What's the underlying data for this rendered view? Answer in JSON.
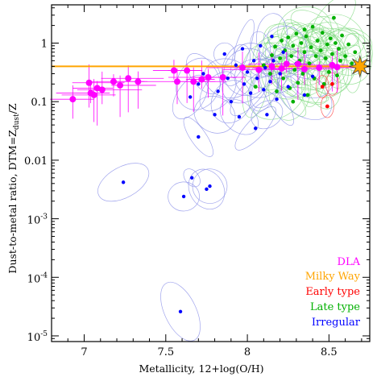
{
  "chart_data": {
    "type": "scatter",
    "xlabel": "Metallicity, 12+log(O/H)",
    "ylabel_main": "Dust-to-metal ratio, DTM=Z",
    "ylabel_sub": "dust",
    "ylabel_tail": "/Z",
    "xlim": [
      6.8,
      8.75
    ],
    "ylim": [
      8e-06,
      4.5
    ],
    "yscale": "log",
    "x_ticks": [
      {
        "v": 7,
        "label": "7"
      },
      {
        "v": 7.5,
        "label": "7.5"
      },
      {
        "v": 8,
        "label": "8"
      },
      {
        "v": 8.5,
        "label": "8.5"
      }
    ],
    "y_ticks": [
      {
        "v": 1,
        "label": "1"
      },
      {
        "v": 0.1,
        "label": "0.1"
      },
      {
        "v": 0.01,
        "label": "0.01"
      },
      {
        "v": 0.001,
        "base": "10",
        "exp": "-3"
      },
      {
        "v": 0.0001,
        "base": "10",
        "exp": "-4"
      },
      {
        "v": 1e-05,
        "base": "10",
        "exp": "-5"
      }
    ],
    "legend": [
      {
        "label": "DLA",
        "color": "#ff00ff"
      },
      {
        "label": "Milky Way",
        "color": "#ffa500"
      },
      {
        "label": "Early type",
        "color": "#ff0000"
      },
      {
        "label": "Late type",
        "color": "#00b000"
      },
      {
        "label": "Irregular",
        "color": "#0000ff"
      }
    ],
    "milky_way": {
      "y": 0.4,
      "star_x": 8.69,
      "color": "#ffa500"
    },
    "series": [
      {
        "name": "DLA",
        "color": "#ff00ff",
        "points": [
          {
            "x": 6.93,
            "y": 0.11
          },
          {
            "x": 7.03,
            "y": 0.21
          },
          {
            "x": 7.04,
            "y": 0.14
          },
          {
            "x": 7.06,
            "y": 0.13
          },
          {
            "x": 7.08,
            "y": 0.17
          },
          {
            "x": 7.11,
            "y": 0.16
          },
          {
            "x": 7.18,
            "y": 0.22
          },
          {
            "x": 7.22,
            "y": 0.19
          },
          {
            "x": 7.27,
            "y": 0.25
          },
          {
            "x": 7.33,
            "y": 0.22
          },
          {
            "x": 7.55,
            "y": 0.34
          },
          {
            "x": 7.57,
            "y": 0.22
          },
          {
            "x": 7.63,
            "y": 0.34
          },
          {
            "x": 7.67,
            "y": 0.22
          },
          {
            "x": 7.72,
            "y": 0.24
          },
          {
            "x": 7.76,
            "y": 0.26
          },
          {
            "x": 7.85,
            "y": 0.26
          },
          {
            "x": 7.97,
            "y": 0.38
          },
          {
            "x": 8.07,
            "y": 0.35
          },
          {
            "x": 8.15,
            "y": 0.4
          },
          {
            "x": 8.21,
            "y": 0.37
          },
          {
            "x": 8.24,
            "y": 0.44
          },
          {
            "x": 8.31,
            "y": 0.44
          },
          {
            "x": 8.35,
            "y": 0.36
          },
          {
            "x": 8.44,
            "y": 0.38
          },
          {
            "x": 8.52,
            "y": 0.42
          },
          {
            "x": 8.55,
            "y": 0.39
          }
        ]
      },
      {
        "name": "Early type",
        "color": "#ff0000",
        "points": [
          {
            "x": 8.46,
            "y": 0.18
          },
          {
            "x": 8.49,
            "y": 0.083
          },
          {
            "x": 8.52,
            "y": 0.2
          }
        ]
      },
      {
        "name": "Late type",
        "color": "#00b000",
        "points": [
          {
            "x": 8.05,
            "y": 0.18
          },
          {
            "x": 8.1,
            "y": 0.42
          },
          {
            "x": 8.14,
            "y": 0.3
          },
          {
            "x": 8.15,
            "y": 0.62
          },
          {
            "x": 8.17,
            "y": 0.87
          },
          {
            "x": 8.18,
            "y": 0.15
          },
          {
            "x": 8.2,
            "y": 0.55
          },
          {
            "x": 8.21,
            "y": 1.1
          },
          {
            "x": 8.22,
            "y": 0.25
          },
          {
            "x": 8.23,
            "y": 0.75
          },
          {
            "x": 8.24,
            "y": 0.42
          },
          {
            "x": 8.25,
            "y": 1.25
          },
          {
            "x": 8.26,
            "y": 0.17
          },
          {
            "x": 8.27,
            "y": 0.6
          },
          {
            "x": 8.28,
            "y": 0.9
          },
          {
            "x": 8.29,
            "y": 0.35
          },
          {
            "x": 8.3,
            "y": 1.45
          },
          {
            "x": 8.31,
            "y": 0.21
          },
          {
            "x": 8.32,
            "y": 0.5
          },
          {
            "x": 8.33,
            "y": 1.0
          },
          {
            "x": 8.34,
            "y": 0.3
          },
          {
            "x": 8.35,
            "y": 0.7
          },
          {
            "x": 8.36,
            "y": 1.3
          },
          {
            "x": 8.37,
            "y": 0.13
          },
          {
            "x": 8.38,
            "y": 0.45
          },
          {
            "x": 8.39,
            "y": 0.85
          },
          {
            "x": 8.4,
            "y": 1.9
          },
          {
            "x": 8.41,
            "y": 0.25
          },
          {
            "x": 8.42,
            "y": 0.6
          },
          {
            "x": 8.43,
            "y": 1.1
          },
          {
            "x": 8.44,
            "y": 0.38
          },
          {
            "x": 8.45,
            "y": 0.75
          },
          {
            "x": 8.46,
            "y": 1.5
          },
          {
            "x": 8.47,
            "y": 0.2
          },
          {
            "x": 8.48,
            "y": 0.55
          },
          {
            "x": 8.49,
            "y": 0.95
          },
          {
            "x": 8.5,
            "y": 0.32
          },
          {
            "x": 8.51,
            "y": 1.2
          },
          {
            "x": 8.52,
            "y": 0.65
          },
          {
            "x": 8.53,
            "y": 0.4
          },
          {
            "x": 8.54,
            "y": 1.0
          },
          {
            "x": 8.55,
            "y": 0.28
          },
          {
            "x": 8.56,
            "y": 0.8
          },
          {
            "x": 8.57,
            "y": 0.5
          },
          {
            "x": 8.58,
            "y": 1.35
          },
          {
            "x": 8.6,
            "y": 0.6
          },
          {
            "x": 8.62,
            "y": 0.95
          },
          {
            "x": 8.64,
            "y": 0.45
          },
          {
            "x": 8.66,
            "y": 0.7
          },
          {
            "x": 8.53,
            "y": 2.7
          },
          {
            "x": 8.35,
            "y": 1.7
          },
          {
            "x": 8.28,
            "y": 0.1
          }
        ]
      },
      {
        "name": "Irregular",
        "color": "#0000ff",
        "points": [
          {
            "x": 7.24,
            "y": 0.0042
          },
          {
            "x": 7.59,
            "y": 2.6e-05
          },
          {
            "x": 7.61,
            "y": 0.0024
          },
          {
            "x": 7.66,
            "y": 0.005
          },
          {
            "x": 7.75,
            "y": 0.0032
          },
          {
            "x": 7.77,
            "y": 0.0036
          },
          {
            "x": 7.65,
            "y": 0.12
          },
          {
            "x": 7.7,
            "y": 0.2
          },
          {
            "x": 7.73,
            "y": 0.3
          },
          {
            "x": 7.82,
            "y": 0.15
          },
          {
            "x": 7.86,
            "y": 0.65
          },
          {
            "x": 7.88,
            "y": 0.25
          },
          {
            "x": 7.9,
            "y": 0.1
          },
          {
            "x": 7.93,
            "y": 0.42
          },
          {
            "x": 7.95,
            "y": 0.055
          },
          {
            "x": 7.97,
            "y": 0.8
          },
          {
            "x": 7.98,
            "y": 0.2
          },
          {
            "x": 8.0,
            "y": 0.32
          },
          {
            "x": 8.02,
            "y": 0.14
          },
          {
            "x": 8.04,
            "y": 0.5
          },
          {
            "x": 8.05,
            "y": 0.035
          },
          {
            "x": 8.06,
            "y": 0.25
          },
          {
            "x": 8.08,
            "y": 0.9
          },
          {
            "x": 8.1,
            "y": 0.16
          },
          {
            "x": 8.11,
            "y": 0.38
          },
          {
            "x": 8.12,
            "y": 0.06
          },
          {
            "x": 8.14,
            "y": 0.22
          },
          {
            "x": 8.16,
            "y": 0.5
          },
          {
            "x": 8.18,
            "y": 0.11
          },
          {
            "x": 8.2,
            "y": 0.3
          },
          {
            "x": 8.22,
            "y": 0.7
          },
          {
            "x": 8.25,
            "y": 0.18
          },
          {
            "x": 8.3,
            "y": 0.45
          },
          {
            "x": 8.35,
            "y": 0.13
          },
          {
            "x": 8.4,
            "y": 0.27
          },
          {
            "x": 7.8,
            "y": 0.06
          },
          {
            "x": 7.7,
            "y": 0.025
          },
          {
            "x": 8.15,
            "y": 1.3
          }
        ]
      }
    ]
  }
}
